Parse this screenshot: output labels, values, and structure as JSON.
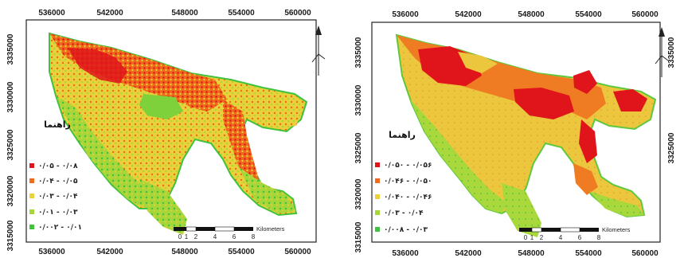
{
  "maps": [
    {
      "x_ticks": [
        "536000",
        "542000",
        "548000",
        "554000",
        "560000"
      ],
      "y_ticks": [
        "3335000",
        "3330000",
        "3325000",
        "3320000",
        "3315000"
      ],
      "legend_title": "راهنما",
      "legend_items": [
        {
          "label": "۰/۰۵ - ۰/۰۸",
          "color": "#e0141b"
        },
        {
          "label": "۰/۰۴ - ۰/۰۵",
          "color": "#ef6a1c"
        },
        {
          "label": "۰/۰۳ - ۰/۰۴",
          "color": "#e8d13a"
        },
        {
          "label": "۰/۰۱ - ۰/۰۳",
          "color": "#a7d63a"
        },
        {
          "label": "۰/۰۰۲ - ۰/۰۱",
          "color": "#3fc23c"
        }
      ],
      "scale_numbers": [
        "0",
        "1",
        "2",
        "4",
        "6",
        "8"
      ],
      "scale_unit": "Kilometers"
    },
    {
      "x_ticks": [
        "536000",
        "542000",
        "548000",
        "554000",
        "560000"
      ],
      "y_ticks": [
        "3335000",
        "3330000",
        "3325000",
        "3320000",
        "3315000"
      ],
      "legend_title": "راهنما",
      "legend_items": [
        {
          "label": "۰/۰۵۰ - ۰/۰۵۶",
          "color": "#e0141b"
        },
        {
          "label": "۰/۰۴۶ - ۰/۰۵۰",
          "color": "#ef6a1c"
        },
        {
          "label": "۰/۰۴۰ - ۰/۰۴۶",
          "color": "#e8d13a"
        },
        {
          "label": "۰/۰۳ - ۰/۰۴",
          "color": "#a7d63a"
        },
        {
          "label": "۰/۰۰۸ - ۰/۰۳",
          "color": "#3fc23c"
        }
      ],
      "scale_numbers": [
        "0",
        "1",
        "2",
        "4",
        "6",
        "8"
      ],
      "scale_unit": "Kilometers"
    }
  ]
}
